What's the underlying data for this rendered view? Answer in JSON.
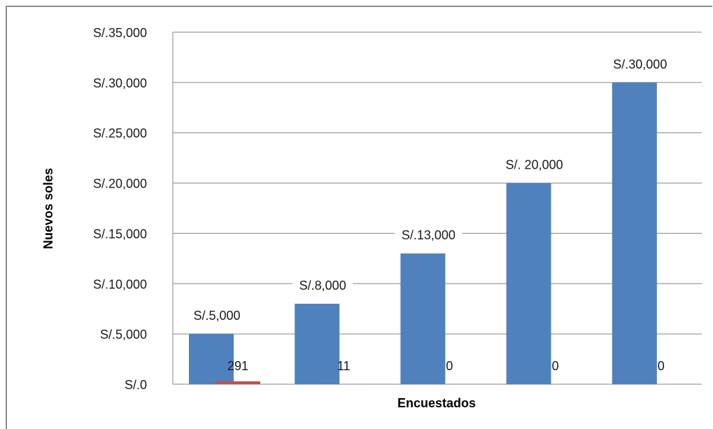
{
  "chart_data": {
    "type": "bar",
    "title": "",
    "xlabel": "Encuestados",
    "ylabel": "Nuevos soles",
    "ylim": [
      0,
      35000
    ],
    "y_ticks": [
      0,
      5000,
      10000,
      15000,
      20000,
      25000,
      30000,
      35000
    ],
    "y_tick_labels": [
      "S/.0",
      "S/.5,000",
      "S/.10,000",
      "S/.15,000",
      "S/.20,000",
      "S/.25,000",
      "S/.30,000",
      "S/.35,000"
    ],
    "grid": true,
    "legend": "none",
    "categories": [
      "",
      "",
      "",
      "",
      ""
    ],
    "series": [
      {
        "color": "#4f81bd",
        "values": [
          5000,
          8000,
          13000,
          20000,
          30000
        ],
        "data_labels": [
          "S/.5,000",
          "S/.8,000",
          "S/.13,000",
          "S/. 20,000",
          "S/.30,000"
        ]
      },
      {
        "color": "#c0504d",
        "values": [
          291,
          11,
          0,
          0,
          0
        ],
        "data_labels": [
          "291",
          "11",
          "0",
          "0",
          "0"
        ]
      }
    ]
  }
}
